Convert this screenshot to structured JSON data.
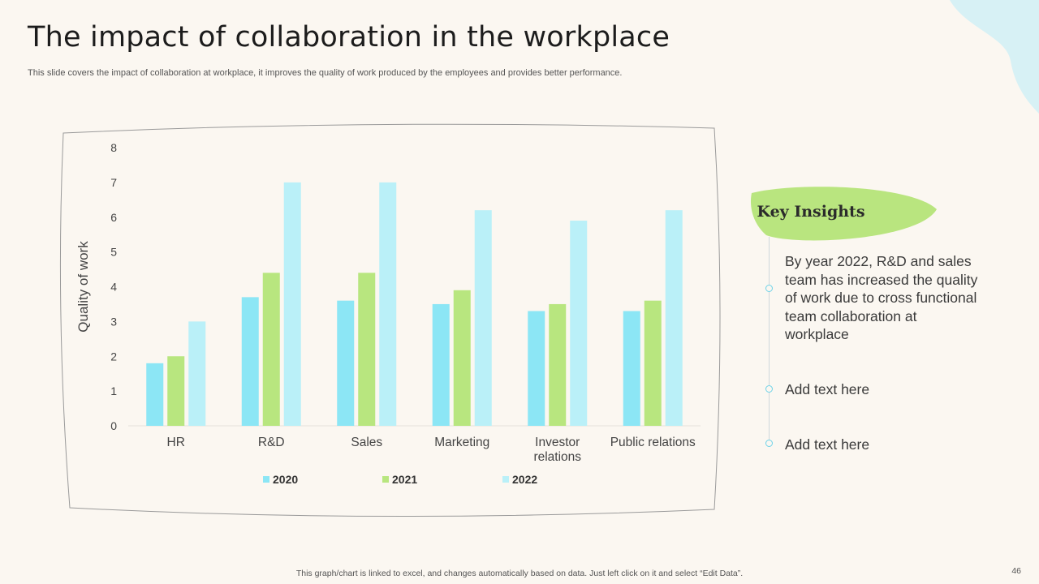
{
  "slide": {
    "title": "The impact of collaboration in the workplace",
    "subtitle": "This slide covers the impact of collaboration at workplace, it improves the quality of work produced by the employees and provides better performance.",
    "footer_note": "This graph/chart is linked to excel,  and changes automatically based on data. Just left click on it and select “Edit Data”.",
    "page_number": "46"
  },
  "insights": {
    "header": "Key Insights",
    "items": [
      "By year 2022, R&D and sales team has increased the quality of work due to cross functional team collaboration at workplace",
      "Add text here",
      "Add text here"
    ]
  },
  "colors": {
    "background": "#fbf7f1",
    "accent_green": "#b9e57f",
    "accent_blob": "#d7f1f5",
    "series_2020": "#8ce6f5",
    "series_2021": "#b8e67f",
    "series_2022": "#baf0f8"
  },
  "chart_data": {
    "type": "bar",
    "title": "",
    "xlabel": "",
    "ylabel": "Quality of work",
    "ylim": [
      0,
      8
    ],
    "yticks": [
      0,
      1,
      2,
      3,
      4,
      5,
      6,
      7,
      8
    ],
    "grid": false,
    "legend_position": "bottom",
    "categories": [
      [
        "HR"
      ],
      [
        "R&D"
      ],
      [
        "Sales"
      ],
      [
        "Marketing"
      ],
      [
        "Investor",
        "relations"
      ],
      [
        "Public relations"
      ]
    ],
    "series": [
      {
        "name": "2020",
        "color": "#8ce6f5",
        "values": [
          1.8,
          3.7,
          3.6,
          3.5,
          3.3,
          3.3
        ]
      },
      {
        "name": "2021",
        "color": "#b8e67f",
        "values": [
          2.0,
          4.4,
          4.4,
          3.9,
          3.5,
          3.6
        ]
      },
      {
        "name": "2022",
        "color": "#baf0f8",
        "values": [
          3.0,
          7.0,
          7.0,
          6.2,
          5.9,
          6.2
        ]
      }
    ]
  }
}
